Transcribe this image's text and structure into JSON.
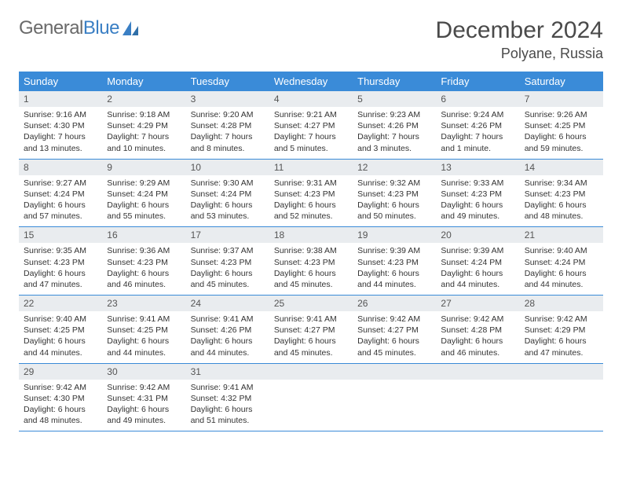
{
  "brand": {
    "part1": "General",
    "part2": "Blue"
  },
  "title": "December 2024",
  "location": "Polyane, Russia",
  "colors": {
    "header_bg": "#3a8bd8",
    "header_text": "#ffffff",
    "daynum_bg": "#e9ecef",
    "border": "#3a8bd8",
    "brand_gray": "#6a6a6a",
    "brand_blue": "#3a7fc4"
  },
  "typography": {
    "title_size": 30,
    "subtitle_size": 18,
    "header_size": 13,
    "daynum_size": 12,
    "body_size": 10.5
  },
  "weekdays": [
    "Sunday",
    "Monday",
    "Tuesday",
    "Wednesday",
    "Thursday",
    "Friday",
    "Saturday"
  ],
  "weeks": [
    [
      {
        "n": "1",
        "sr": "9:16 AM",
        "ss": "4:30 PM",
        "dl": "7 hours and 13 minutes."
      },
      {
        "n": "2",
        "sr": "9:18 AM",
        "ss": "4:29 PM",
        "dl": "7 hours and 10 minutes."
      },
      {
        "n": "3",
        "sr": "9:20 AM",
        "ss": "4:28 PM",
        "dl": "7 hours and 8 minutes."
      },
      {
        "n": "4",
        "sr": "9:21 AM",
        "ss": "4:27 PM",
        "dl": "7 hours and 5 minutes."
      },
      {
        "n": "5",
        "sr": "9:23 AM",
        "ss": "4:26 PM",
        "dl": "7 hours and 3 minutes."
      },
      {
        "n": "6",
        "sr": "9:24 AM",
        "ss": "4:26 PM",
        "dl": "7 hours and 1 minute."
      },
      {
        "n": "7",
        "sr": "9:26 AM",
        "ss": "4:25 PM",
        "dl": "6 hours and 59 minutes."
      }
    ],
    [
      {
        "n": "8",
        "sr": "9:27 AM",
        "ss": "4:24 PM",
        "dl": "6 hours and 57 minutes."
      },
      {
        "n": "9",
        "sr": "9:29 AM",
        "ss": "4:24 PM",
        "dl": "6 hours and 55 minutes."
      },
      {
        "n": "10",
        "sr": "9:30 AM",
        "ss": "4:24 PM",
        "dl": "6 hours and 53 minutes."
      },
      {
        "n": "11",
        "sr": "9:31 AM",
        "ss": "4:23 PM",
        "dl": "6 hours and 52 minutes."
      },
      {
        "n": "12",
        "sr": "9:32 AM",
        "ss": "4:23 PM",
        "dl": "6 hours and 50 minutes."
      },
      {
        "n": "13",
        "sr": "9:33 AM",
        "ss": "4:23 PM",
        "dl": "6 hours and 49 minutes."
      },
      {
        "n": "14",
        "sr": "9:34 AM",
        "ss": "4:23 PM",
        "dl": "6 hours and 48 minutes."
      }
    ],
    [
      {
        "n": "15",
        "sr": "9:35 AM",
        "ss": "4:23 PM",
        "dl": "6 hours and 47 minutes."
      },
      {
        "n": "16",
        "sr": "9:36 AM",
        "ss": "4:23 PM",
        "dl": "6 hours and 46 minutes."
      },
      {
        "n": "17",
        "sr": "9:37 AM",
        "ss": "4:23 PM",
        "dl": "6 hours and 45 minutes."
      },
      {
        "n": "18",
        "sr": "9:38 AM",
        "ss": "4:23 PM",
        "dl": "6 hours and 45 minutes."
      },
      {
        "n": "19",
        "sr": "9:39 AM",
        "ss": "4:23 PM",
        "dl": "6 hours and 44 minutes."
      },
      {
        "n": "20",
        "sr": "9:39 AM",
        "ss": "4:24 PM",
        "dl": "6 hours and 44 minutes."
      },
      {
        "n": "21",
        "sr": "9:40 AM",
        "ss": "4:24 PM",
        "dl": "6 hours and 44 minutes."
      }
    ],
    [
      {
        "n": "22",
        "sr": "9:40 AM",
        "ss": "4:25 PM",
        "dl": "6 hours and 44 minutes."
      },
      {
        "n": "23",
        "sr": "9:41 AM",
        "ss": "4:25 PM",
        "dl": "6 hours and 44 minutes."
      },
      {
        "n": "24",
        "sr": "9:41 AM",
        "ss": "4:26 PM",
        "dl": "6 hours and 44 minutes."
      },
      {
        "n": "25",
        "sr": "9:41 AM",
        "ss": "4:27 PM",
        "dl": "6 hours and 45 minutes."
      },
      {
        "n": "26",
        "sr": "9:42 AM",
        "ss": "4:27 PM",
        "dl": "6 hours and 45 minutes."
      },
      {
        "n": "27",
        "sr": "9:42 AM",
        "ss": "4:28 PM",
        "dl": "6 hours and 46 minutes."
      },
      {
        "n": "28",
        "sr": "9:42 AM",
        "ss": "4:29 PM",
        "dl": "6 hours and 47 minutes."
      }
    ],
    [
      {
        "n": "29",
        "sr": "9:42 AM",
        "ss": "4:30 PM",
        "dl": "6 hours and 48 minutes."
      },
      {
        "n": "30",
        "sr": "9:42 AM",
        "ss": "4:31 PM",
        "dl": "6 hours and 49 minutes."
      },
      {
        "n": "31",
        "sr": "9:41 AM",
        "ss": "4:32 PM",
        "dl": "6 hours and 51 minutes."
      },
      null,
      null,
      null,
      null
    ]
  ]
}
